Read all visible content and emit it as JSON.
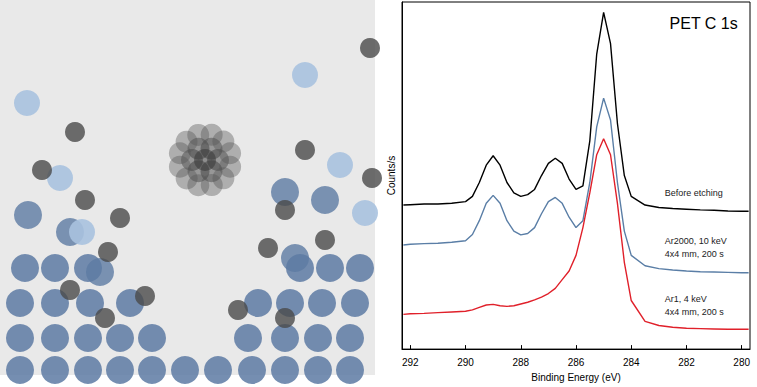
{
  "chart_data": {
    "type": "line",
    "title": "PET C 1s",
    "x_label": "Binding Energy (eV)",
    "y_label": "Counts/s",
    "x": [
      292.25,
      292,
      291.5,
      291,
      290.5,
      290,
      289.75,
      289.5,
      289.25,
      289,
      288.75,
      288.5,
      288.25,
      288,
      287.75,
      287.5,
      287.25,
      287,
      286.75,
      286.5,
      286.25,
      286,
      285.75,
      285.5,
      285.25,
      285,
      284.75,
      284.5,
      284.25,
      284,
      283.5,
      283,
      282.5,
      282,
      281.5,
      281,
      280.5,
      280,
      279.75
    ],
    "series": [
      {
        "name": "Before etching",
        "color": "#000000",
        "values": [
          41.5,
          41.6,
          41.8,
          41.8,
          42,
          42.5,
          44,
          48,
          53,
          55.7,
          53,
          48,
          45,
          44,
          44.5,
          46,
          50,
          53.5,
          55,
          53.5,
          49,
          46,
          47,
          60,
          85,
          97,
          88,
          65,
          50,
          44,
          41.5,
          40.8,
          40.5,
          40.3,
          40.1,
          40,
          39.8,
          39.7,
          39.7
        ]
      },
      {
        "name": "Ar2000, 10 keV\n4x4 mm, 200 s",
        "color": "#5a7ea6",
        "values": [
          30,
          30.2,
          30.4,
          30.5,
          30.8,
          31.2,
          33,
          37,
          42,
          44.3,
          42,
          37,
          34,
          32.9,
          33.3,
          35,
          39,
          42.5,
          43.7,
          42,
          38,
          35,
          37,
          48,
          64,
          72.3,
          66,
          48,
          34,
          27,
          24,
          23.2,
          22.8,
          22.5,
          22.3,
          22.2,
          22.1,
          22,
          22
        ]
      },
      {
        "name": "Ar1, 4 keV\n4x4 mm, 200 s",
        "color": "#e0202a",
        "values": [
          10,
          10.2,
          10.3,
          10.5,
          10.7,
          10.9,
          11.3,
          12,
          12.7,
          12.9,
          12.5,
          12.3,
          12.5,
          13,
          13.5,
          14.2,
          15,
          16,
          17.5,
          20,
          22.5,
          27,
          35,
          45,
          56,
          60.6,
          56,
          42,
          25,
          14,
          8,
          6.8,
          6.3,
          6,
          5.9,
          5.8,
          5.7,
          5.7,
          5.7
        ]
      }
    ],
    "xlim": [
      292.3,
      279.7
    ],
    "xticks": [
      292,
      290,
      288,
      286,
      284,
      282,
      280
    ],
    "ylim": [
      0,
      100
    ],
    "yticks": [],
    "tick_labels": "x",
    "grid": false
  }
}
